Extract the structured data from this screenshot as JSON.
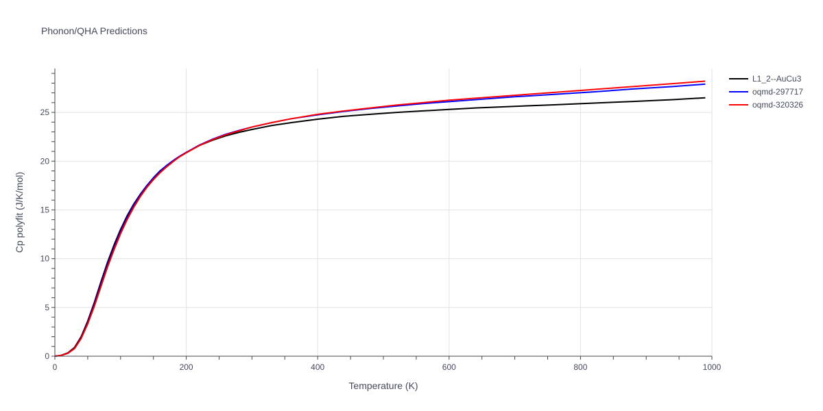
{
  "chart_data": {
    "type": "line",
    "title": "Phonon/QHA Predictions",
    "xlabel": "Temperature (K)",
    "ylabel": "Cp polyfit (J/K/mol)",
    "xlim": [
      0,
      1000
    ],
    "ylim": [
      0,
      29.5
    ],
    "xticks": [
      0,
      200,
      400,
      600,
      800,
      1000
    ],
    "yticks": [
      0,
      5,
      10,
      15,
      20,
      25
    ],
    "grid": true,
    "legend_position": "top-right",
    "series": [
      {
        "name": "L1_2--AuCu3",
        "color": "#000000",
        "x": [
          0,
          10,
          20,
          30,
          40,
          50,
          60,
          70,
          80,
          90,
          100,
          110,
          120,
          130,
          140,
          150,
          160,
          170,
          180,
          190,
          200,
          220,
          240,
          260,
          280,
          300,
          330,
          360,
          400,
          440,
          480,
          520,
          560,
          600,
          640,
          700,
          760,
          820,
          880,
          940,
          990
        ],
        "y": [
          0,
          0.1,
          0.35,
          0.9,
          2.0,
          3.6,
          5.5,
          7.6,
          9.6,
          11.4,
          13.0,
          14.4,
          15.6,
          16.6,
          17.5,
          18.3,
          19.0,
          19.55,
          20.05,
          20.5,
          20.9,
          21.6,
          22.15,
          22.6,
          22.95,
          23.25,
          23.65,
          23.95,
          24.3,
          24.6,
          24.8,
          25.0,
          25.15,
          25.3,
          25.45,
          25.62,
          25.78,
          25.95,
          26.12,
          26.3,
          26.5
        ]
      },
      {
        "name": "oqmd-297717",
        "color": "#0000ff",
        "x": [
          0,
          10,
          20,
          30,
          40,
          50,
          60,
          70,
          80,
          90,
          100,
          110,
          120,
          130,
          140,
          150,
          160,
          170,
          180,
          190,
          200,
          220,
          240,
          260,
          280,
          300,
          330,
          360,
          400,
          440,
          480,
          520,
          560,
          600,
          640,
          700,
          760,
          820,
          880,
          940,
          990
        ],
        "y": [
          0,
          0.08,
          0.3,
          0.8,
          1.85,
          3.4,
          5.25,
          7.3,
          9.3,
          11.1,
          12.75,
          14.2,
          15.45,
          16.5,
          17.45,
          18.25,
          18.95,
          19.55,
          20.05,
          20.5,
          20.9,
          21.65,
          22.25,
          22.75,
          23.15,
          23.5,
          23.95,
          24.35,
          24.75,
          25.1,
          25.4,
          25.65,
          25.9,
          26.1,
          26.3,
          26.6,
          26.85,
          27.1,
          27.4,
          27.65,
          27.9
        ]
      },
      {
        "name": "oqmd-320326",
        "color": "#ff0000",
        "x": [
          0,
          10,
          20,
          30,
          40,
          50,
          60,
          70,
          80,
          90,
          100,
          110,
          120,
          130,
          140,
          150,
          160,
          170,
          180,
          190,
          200,
          220,
          240,
          260,
          280,
          300,
          330,
          360,
          400,
          440,
          480,
          520,
          560,
          600,
          640,
          700,
          760,
          820,
          880,
          940,
          990
        ],
        "y": [
          0,
          0.08,
          0.3,
          0.78,
          1.8,
          3.3,
          5.1,
          7.1,
          9.1,
          10.9,
          12.55,
          14.0,
          15.25,
          16.35,
          17.3,
          18.1,
          18.8,
          19.4,
          19.95,
          20.45,
          20.85,
          21.6,
          22.2,
          22.7,
          23.1,
          23.5,
          23.95,
          24.35,
          24.8,
          25.15,
          25.45,
          25.75,
          26.0,
          26.25,
          26.45,
          26.75,
          27.05,
          27.35,
          27.65,
          27.95,
          28.2
        ]
      }
    ]
  }
}
